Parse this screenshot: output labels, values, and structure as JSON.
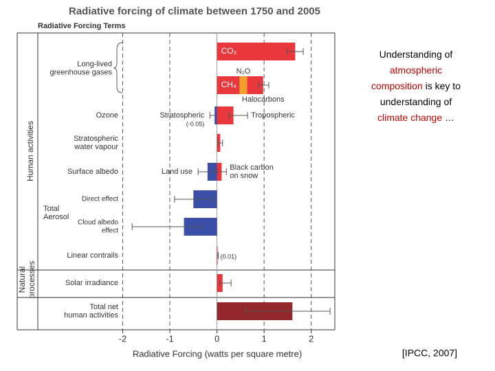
{
  "chart_data": {
    "type": "bar",
    "title": "Radiative forcing of climate between 1750 and 2005",
    "subtitle": "Radiative Forcing Terms",
    "x_label": "Radiative Forcing  (watts per square metre)",
    "side_labels": [
      [
        "Human activities"
      ],
      [
        "Natural",
        "processes"
      ]
    ],
    "xlim": [
      -3.8,
      2.5
    ],
    "xticks": [
      -2,
      -1,
      0,
      1,
      2
    ],
    "rows": [
      {
        "label": [
          "Long-lived",
          "greenhouse gases"
        ],
        "bars": [
          {
            "segments": [
              {
                "name": "CO₂",
                "value": 1.66,
                "color": "#e8383d",
                "range": [
                  1.49,
                  1.83
                ]
              }
            ]
          },
          {
            "segments": [
              {
                "name": "CH₄",
                "value": 0.48,
                "color": "#e8383d"
              },
              {
                "name": "N₂O",
                "value": 0.16,
                "color": "#f4a030"
              },
              {
                "name": "Halocarbons",
                "value": 0.34,
                "color": "#e8383d"
              }
            ],
            "range": [
              0.88,
              1.1
            ]
          }
        ]
      },
      {
        "label": [
          "Ozone"
        ],
        "bars": [
          {
            "segments": [
              {
                "name": "Stratospheric",
                "note": "(-0.05)",
                "value": -0.05,
                "color": "#3b4fa8",
                "range": [
                  -0.15,
                  0.05
                ]
              },
              {
                "name": "Tropospheric",
                "value": 0.35,
                "color": "#e8383d",
                "range": [
                  0.25,
                  0.65
                ]
              }
            ]
          }
        ]
      },
      {
        "label": [
          "Stratospheric",
          "water vapour"
        ],
        "bars": [
          {
            "segments": [
              {
                "value": 0.07,
                "color": "#e8383d",
                "range": [
                  0.02,
                  0.12
                ]
              }
            ]
          }
        ]
      },
      {
        "label": [
          "Surface albedo"
        ],
        "bars": [
          {
            "segments": [
              {
                "name": "Land use",
                "value": -0.2,
                "color": "#3b4fa8",
                "range": [
                  -0.4,
                  0
                ]
              },
              {
                "name": [
                  "Black carbon",
                  "on snow"
                ],
                "value": 0.1,
                "color": "#e8383d",
                "range": [
                  0,
                  0.2
                ]
              }
            ]
          }
        ]
      },
      {
        "label": [
          "Total",
          "Aerosol"
        ],
        "bars": [
          {
            "sublabel": [
              "Direct effect"
            ],
            "segments": [
              {
                "value": -0.5,
                "color": "#3b4fa8",
                "range": [
                  -0.9,
                  -0.1
                ]
              }
            ]
          },
          {
            "sublabel": [
              "Cloud albedo",
              "effect"
            ],
            "segments": [
              {
                "value": -0.7,
                "color": "#3b4fa8",
                "range": [
                  -1.8,
                  -0.3
                ]
              }
            ]
          }
        ]
      },
      {
        "label": [
          "Linear contrails"
        ],
        "bars": [
          {
            "segments": [
              {
                "note": "(0.01)",
                "value": 0.01,
                "color": "#e8383d",
                "range": [
                  0.003,
                  0.03
                ]
              }
            ]
          }
        ]
      },
      {
        "label": [
          "Solar irradiance"
        ],
        "bars": [
          {
            "segments": [
              {
                "value": 0.12,
                "color": "#e8383d",
                "range": [
                  0.06,
                  0.3
                ]
              }
            ]
          }
        ]
      },
      {
        "label": [
          "Total net",
          "human activities"
        ],
        "bars": [
          {
            "segments": [
              {
                "value": 1.6,
                "color": "#93282c",
                "range": [
                  0.6,
                  2.4
                ]
              }
            ]
          }
        ]
      }
    ]
  },
  "text": {
    "lines": [
      [
        {
          "text": "Understanding of"
        }
      ],
      [
        {
          "text": "atmospheric",
          "highlight": true
        }
      ],
      [
        {
          "text": "composition",
          "highlight": true
        },
        {
          "text": " is key to"
        }
      ],
      [
        {
          "text": "understanding of"
        }
      ],
      [
        {
          "text": "climate change",
          "highlight": true
        },
        {
          "text": " …"
        }
      ]
    ],
    "citation": "[IPCC, 2007]"
  }
}
